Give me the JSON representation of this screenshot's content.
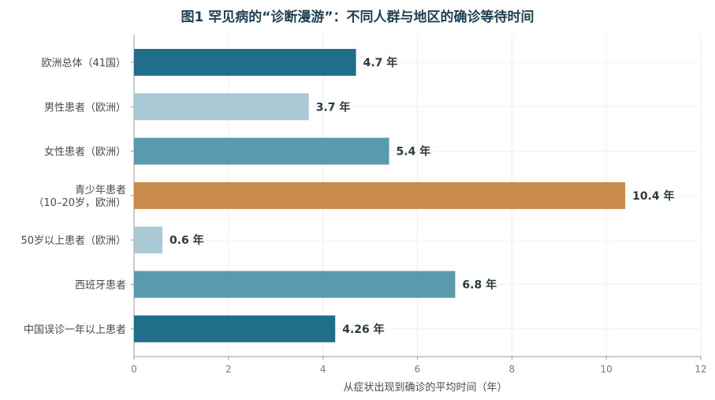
{
  "chart_data": {
    "type": "bar",
    "orientation": "horizontal",
    "title": "图1  罕见病的“诊断漫游”：不同人群与地区的确诊等待时间",
    "xlabel": "从症状出现到确诊的平均时间（年）",
    "ylabel": "",
    "xlim": [
      0,
      12
    ],
    "xticks": [
      0,
      2,
      4,
      6,
      8,
      10,
      12
    ],
    "grid": true,
    "value_unit": "年",
    "categories": [
      [
        "欧洲总体（41国）"
      ],
      [
        "男性患者（欧洲）"
      ],
      [
        "女性患者（欧洲）"
      ],
      [
        "青少年患者",
        "（10–20岁，欧洲）"
      ],
      [
        "50岁以上患者（欧洲）"
      ],
      [
        "西班牙患者"
      ],
      [
        "中国误诊一年以上患者"
      ]
    ],
    "values": [
      4.7,
      3.7,
      5.4,
      10.4,
      0.6,
      6.8,
      4.26
    ],
    "value_labels": [
      "4.7 年",
      "3.7 年",
      "5.4 年",
      "10.4 年",
      "0.6 年",
      "6.8 年",
      "4.26 年"
    ],
    "colors": [
      "#216e8a",
      "#a8c9d3",
      "#5b9aac",
      "#c98a4b",
      "#a8c9d3",
      "#5b9aac",
      "#216e8a"
    ]
  }
}
